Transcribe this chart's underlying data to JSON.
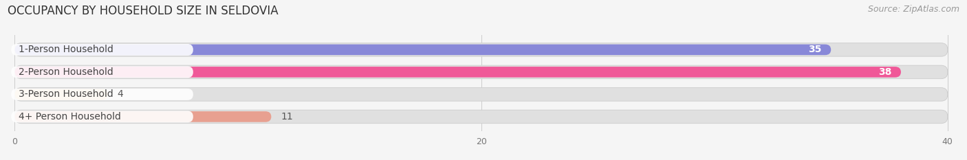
{
  "title": "OCCUPANCY BY HOUSEHOLD SIZE IN SELDOVIA",
  "source": "Source: ZipAtlas.com",
  "categories": [
    "1-Person Household",
    "2-Person Household",
    "3-Person Household",
    "4+ Person Household"
  ],
  "values": [
    35,
    38,
    4,
    11
  ],
  "bar_colors": [
    "#8888d8",
    "#f05898",
    "#f5c88a",
    "#e8a090"
  ],
  "xlim": [
    0,
    40
  ],
  "xticks": [
    0,
    20,
    40
  ],
  "background_color": "#f5f5f5",
  "bar_bg_color": "#e0e0e0",
  "title_fontsize": 12,
  "source_fontsize": 9,
  "label_fontsize": 10,
  "value_fontsize": 10,
  "value_threshold": 12
}
